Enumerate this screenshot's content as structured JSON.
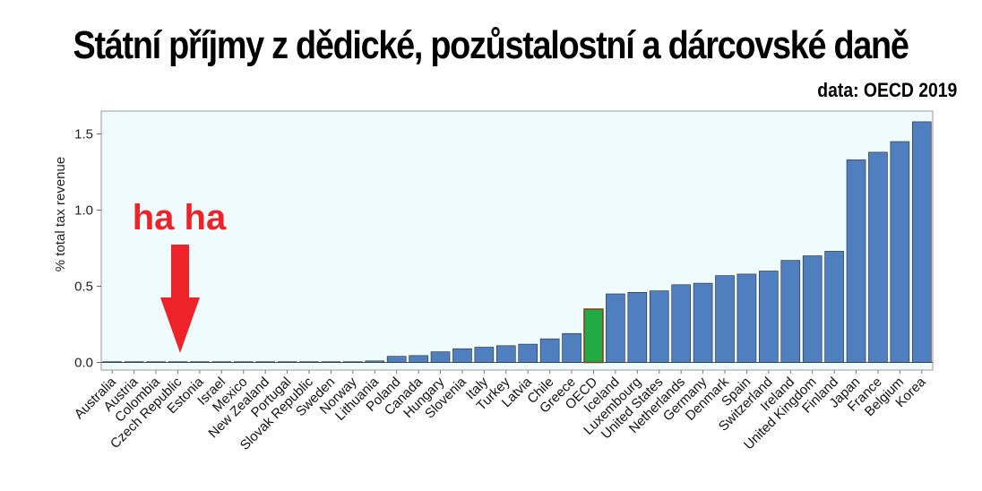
{
  "header": {
    "title": "Státní příjmy z dědické, pozůstalostní a dárcovské daně",
    "source": "data: OECD 2019"
  },
  "annotation": {
    "text": "ha ha",
    "target_category": "Czech Republic",
    "color": "#ee2229"
  },
  "colors": {
    "bar": "#4f7fbf",
    "highlight": "#22aa44",
    "highlight_border": "#8b3a1a",
    "plot_bg": "#f0fbfd"
  },
  "chart_data": {
    "type": "bar",
    "title": "",
    "xlabel": "",
    "ylabel": "% total tax revenue",
    "ylim": [
      -0.05,
      1.65
    ],
    "yticks": [
      0.0,
      0.5,
      1.0,
      1.5
    ],
    "ytick_labels": [
      "0.0",
      "0.5",
      "1.0",
      "1.5"
    ],
    "grid": false,
    "highlight": "OECD",
    "categories": [
      "Australia",
      "Austria",
      "Colombia",
      "Czech Republic",
      "Estonia",
      "Israel",
      "Mexico",
      "New Zealand",
      "Portugal",
      "Slovak Republic",
      "Sweden",
      "Norway",
      "Lithuania",
      "Poland",
      "Canada",
      "Hungary",
      "Slovenia",
      "Italy",
      "Turkey",
      "Latvia",
      "Chile",
      "Greece",
      "OECD",
      "Iceland",
      "Luxembourg",
      "United States",
      "Netherlands",
      "Germany",
      "Denmark",
      "Spain",
      "Switzerland",
      "Ireland",
      "United Kingdom",
      "Finland",
      "Japan",
      "France",
      "Belgium",
      "Korea"
    ],
    "values": [
      0,
      0,
      0,
      0,
      0,
      0,
      0,
      0,
      0,
      0,
      0,
      0.004,
      0.01,
      0.04,
      0.045,
      0.07,
      0.09,
      0.1,
      0.11,
      0.12,
      0.155,
      0.19,
      0.35,
      0.45,
      0.46,
      0.47,
      0.51,
      0.52,
      0.57,
      0.58,
      0.6,
      0.67,
      0.7,
      0.73,
      1.33,
      1.38,
      1.45,
      1.58
    ]
  }
}
